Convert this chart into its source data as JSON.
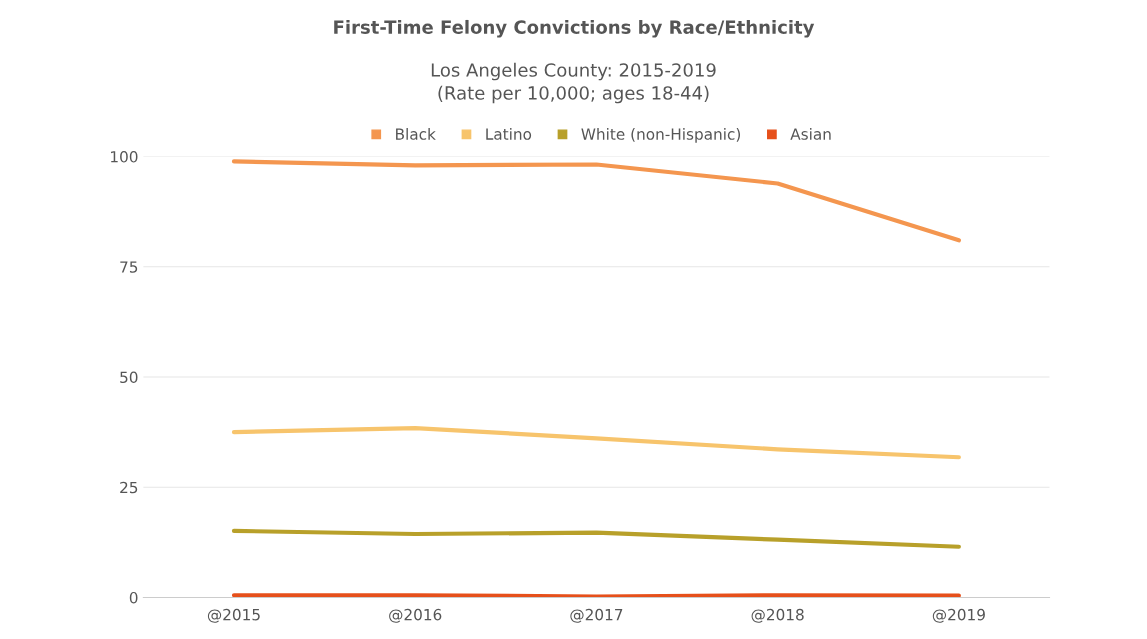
{
  "chart_data": {
    "type": "line",
    "title": "First-Time Felony Convictions by Race/Ethnicity",
    "subtitle": "Los Angeles County: 2015-2019\n(Rate per 10,000; ages 18-44)",
    "categories": [
      "@2015",
      "@2016",
      "@2017",
      "@2018",
      "@2019"
    ],
    "series": [
      {
        "name": "Black",
        "color": "#f4964f",
        "values": [
          98.9,
          98.0,
          98.2,
          93.9,
          81.0
        ]
      },
      {
        "name": "Latino",
        "color": "#f7c46c",
        "values": [
          37.5,
          38.4,
          36.1,
          33.6,
          31.8
        ]
      },
      {
        "name": "White (non-Hispanic)",
        "color": "#b8a02a",
        "values": [
          15.1,
          14.4,
          14.7,
          13.1,
          11.5
        ]
      },
      {
        "name": "Asian",
        "color": "#e6501b",
        "values": [
          0.5,
          0.5,
          0.2,
          0.5,
          0.4
        ]
      }
    ],
    "ylim": [
      0,
      100
    ],
    "yticks": [
      0,
      25,
      50,
      75,
      100
    ],
    "grid": "y",
    "legend": "top",
    "marker": "none",
    "line_style": "solid"
  }
}
